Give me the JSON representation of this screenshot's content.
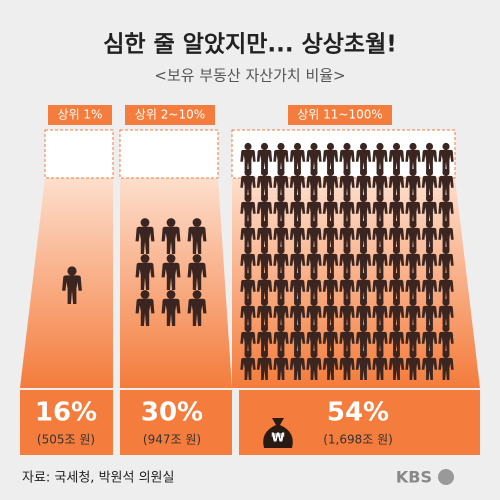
{
  "header": {
    "title": "심한 줄 알았지만... 상상초월!",
    "subtitle": "<보유 부동산 자산가치 비율>"
  },
  "groups": [
    {
      "label": "상위 1%",
      "percent": "16%",
      "amount": "(505조 원)"
    },
    {
      "label": "상위 2~10%",
      "percent": "30%",
      "amount": "(947조 원)"
    },
    {
      "label": "상위 11~100%",
      "percent": "54%",
      "amount": "(1,698조 원)"
    }
  ],
  "footer": {
    "source": "자료: 국세청, 박원석 의원실",
    "logo": "KBS"
  }
}
